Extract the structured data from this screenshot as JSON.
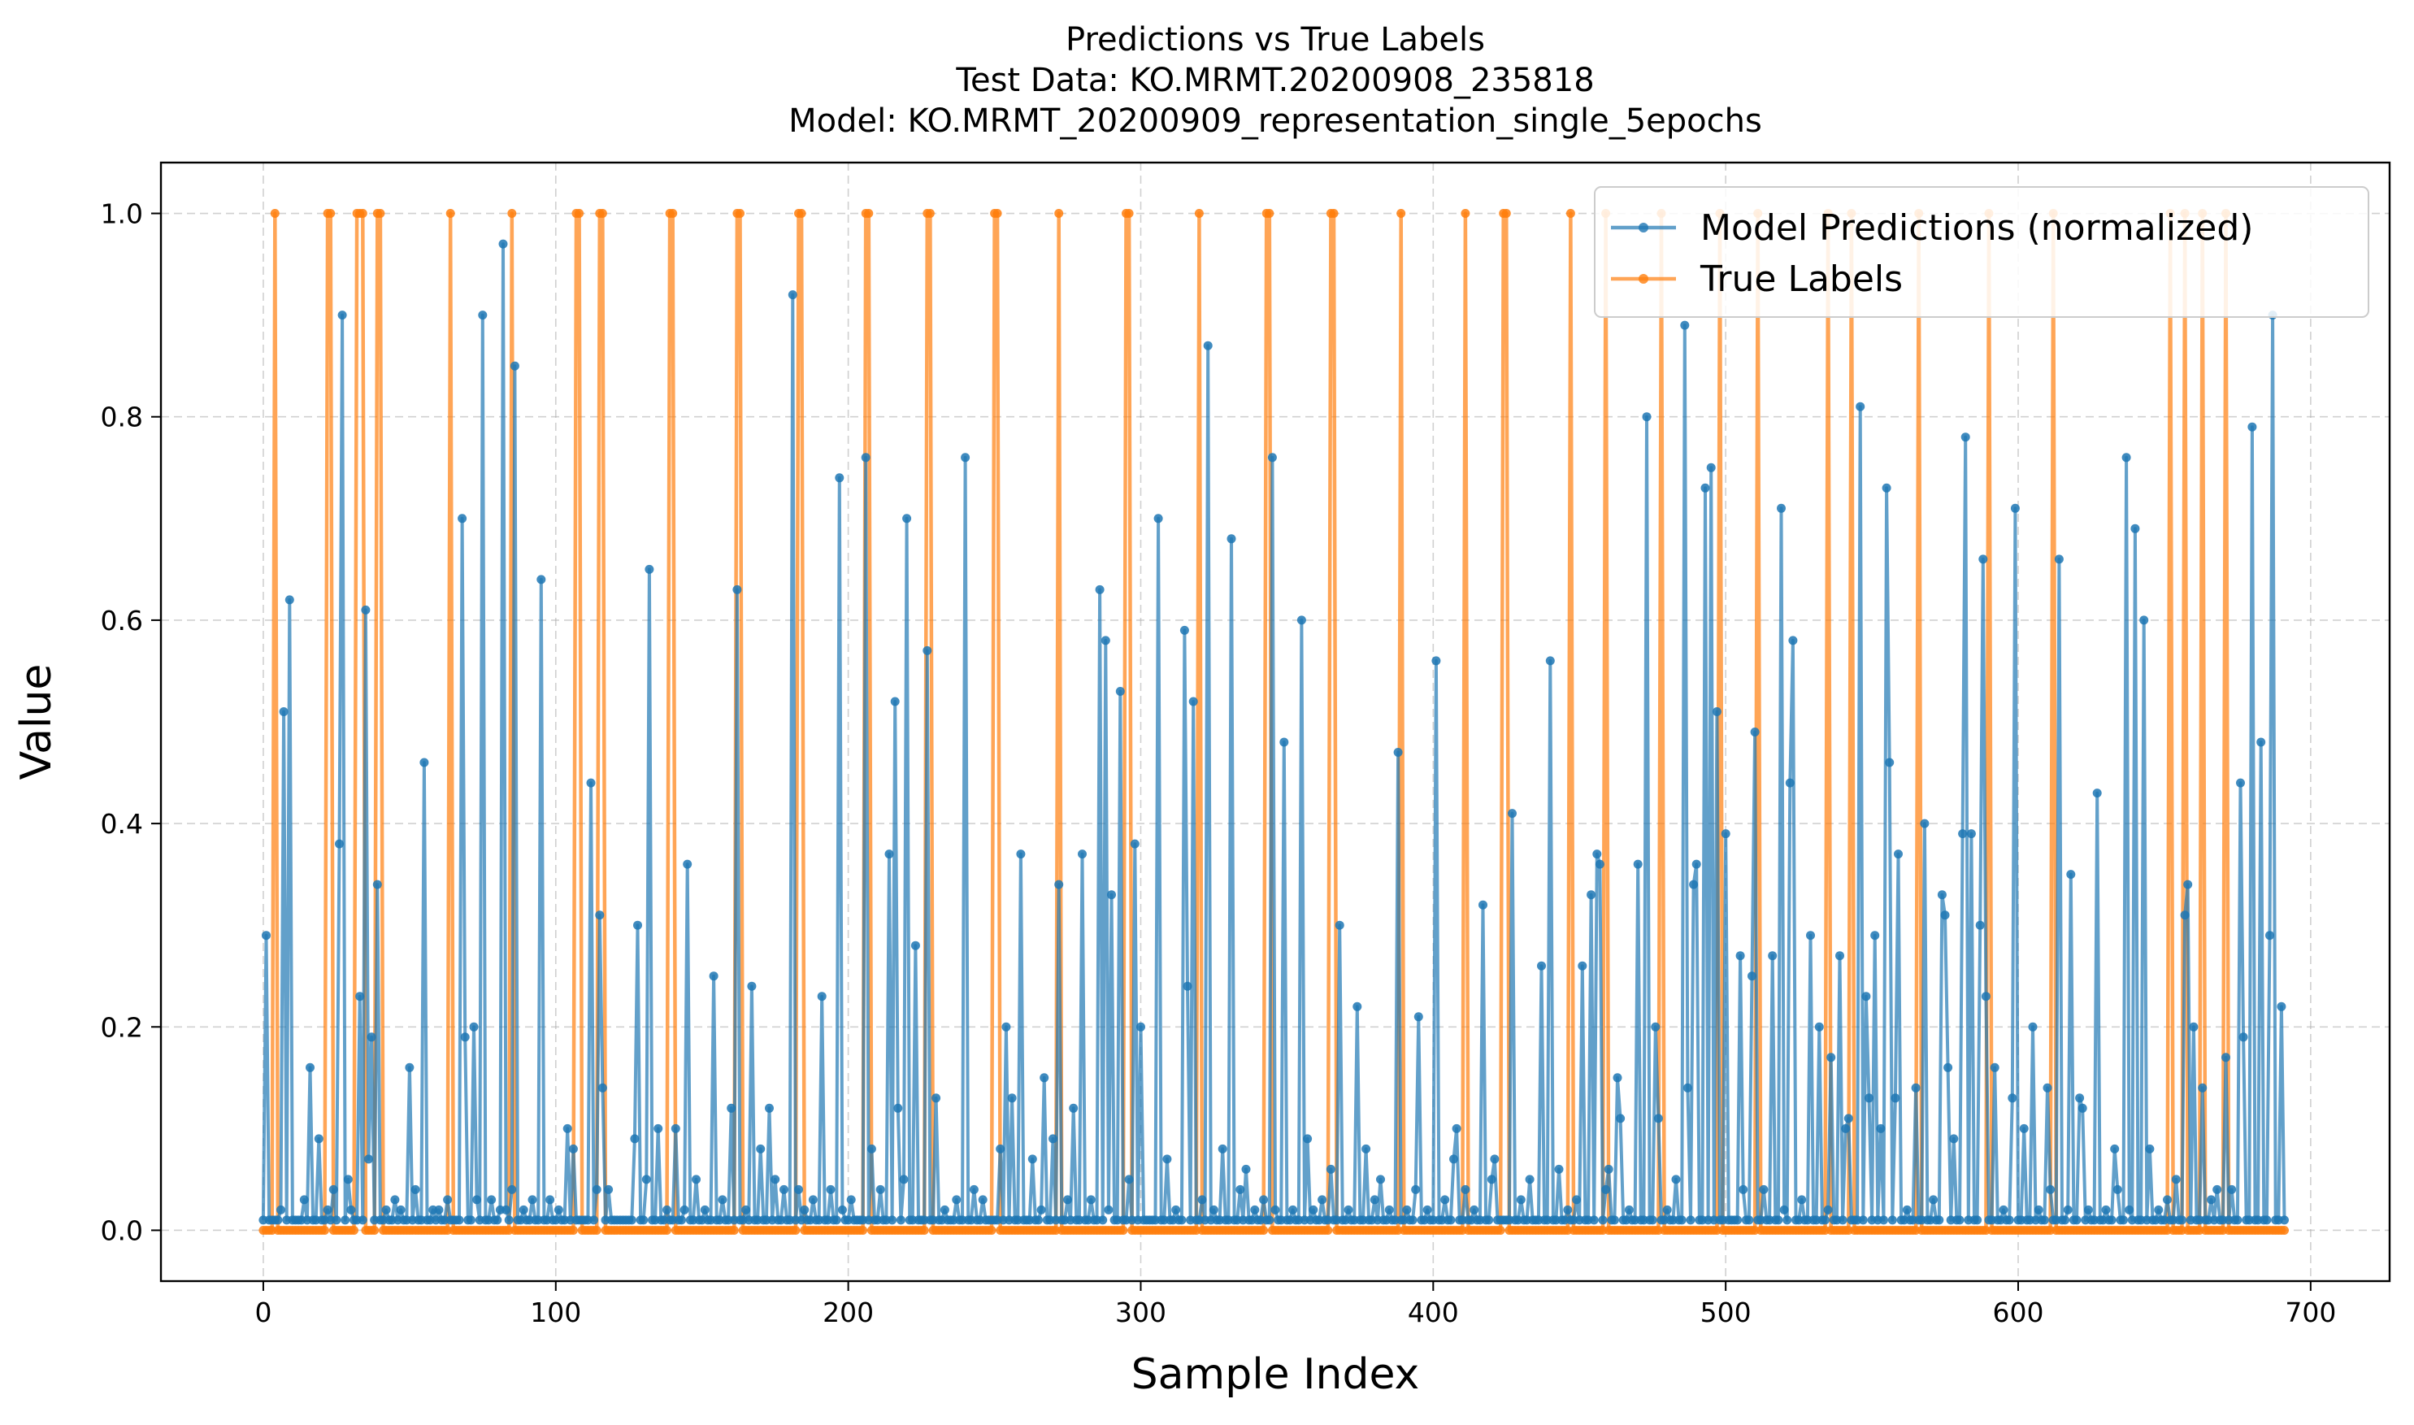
{
  "chart_data": {
    "type": "line",
    "title_lines": [
      "Predictions vs True Labels",
      "Test Data: KO.MRMT.20200908_235818",
      "Model: KO.MRMT_20200909_representation_single_5epochs"
    ],
    "xlabel": "Sample Index",
    "ylabel": "Value",
    "xlim": [
      -35,
      727
    ],
    "ylim": [
      -0.05,
      1.05
    ],
    "xticks": [
      0,
      100,
      200,
      300,
      400,
      500,
      600,
      700
    ],
    "yticks": [
      0.0,
      0.2,
      0.4,
      0.6,
      0.8,
      1.0
    ],
    "ytick_labels": [
      "0.0",
      "0.2",
      "0.4",
      "0.6",
      "0.8",
      "1.0"
    ],
    "grid": true,
    "legend_position": "top-right",
    "colors": {
      "predictions": "#1f77b4",
      "labels": "#ff7f0e"
    },
    "n_samples": 692,
    "series": [
      {
        "name": "Model Predictions (normalized)",
        "key": "predictions",
        "baseline": 0.01,
        "peaks": [
          [
            1,
            0.29
          ],
          [
            4,
            0.02
          ],
          [
            5,
            0.51
          ],
          [
            6,
            0.62
          ],
          [
            8,
            0.01
          ],
          [
            10,
            0.03
          ],
          [
            11,
            0.16
          ],
          [
            13,
            0.09
          ],
          [
            15,
            0.02
          ],
          [
            17,
            0.04
          ],
          [
            18,
            0.38
          ],
          [
            19,
            0.9
          ],
          [
            20,
            0.05
          ],
          [
            21,
            0.02
          ],
          [
            23,
            0.23
          ],
          [
            24,
            0.61
          ],
          [
            25,
            0.07
          ],
          [
            26,
            0.19
          ],
          [
            27,
            0.34
          ],
          [
            29,
            0.02
          ],
          [
            31,
            0.03
          ],
          [
            33,
            0.02
          ],
          [
            35,
            0.16
          ],
          [
            36,
            0.04
          ],
          [
            38,
            0.46
          ],
          [
            40,
            0.02
          ],
          [
            42,
            0.02
          ],
          [
            44,
            0.03
          ],
          [
            47,
            0.7
          ],
          [
            48,
            0.19
          ],
          [
            50,
            0.2
          ],
          [
            51,
            0.03
          ],
          [
            52,
            0.9
          ],
          [
            54,
            0.03
          ],
          [
            56,
            0.02
          ],
          [
            57,
            0.97
          ],
          [
            58,
            0.02
          ],
          [
            59,
            0.04
          ],
          [
            60,
            0.85
          ],
          [
            62,
            0.02
          ],
          [
            64,
            0.03
          ],
          [
            66,
            0.64
          ],
          [
            68,
            0.03
          ],
          [
            70,
            0.02
          ],
          [
            72,
            0.1
          ],
          [
            74,
            0.08
          ],
          [
            76,
            0.01
          ],
          [
            78,
            0.44
          ],
          [
            79,
            0.04
          ],
          [
            80,
            0.31
          ],
          [
            81,
            0.14
          ],
          [
            82,
            0.04
          ],
          [
            86,
            0.01
          ],
          [
            88,
            0.09
          ],
          [
            89,
            0.3
          ],
          [
            91,
            0.05
          ],
          [
            92,
            0.65
          ],
          [
            94,
            0.1
          ],
          [
            96,
            0.02
          ],
          [
            98,
            0.1
          ],
          [
            100,
            0.02
          ],
          [
            101,
            0.36
          ],
          [
            103,
            0.05
          ],
          [
            105,
            0.02
          ],
          [
            107,
            0.25
          ],
          [
            109,
            0.03
          ],
          [
            111,
            0.12
          ],
          [
            113,
            0.63
          ],
          [
            115,
            0.02
          ],
          [
            116,
            0.24
          ],
          [
            118,
            0.08
          ],
          [
            120,
            0.12
          ],
          [
            122,
            0.05
          ],
          [
            124,
            0.04
          ],
          [
            126,
            0.92
          ],
          [
            127,
            0.04
          ],
          [
            129,
            0.02
          ],
          [
            131,
            0.03
          ],
          [
            133,
            0.23
          ],
          [
            135,
            0.04
          ],
          [
            137,
            0.74
          ],
          [
            138,
            0.02
          ],
          [
            140,
            0.03
          ],
          [
            143,
            0.76
          ],
          [
            145,
            0.08
          ],
          [
            147,
            0.04
          ],
          [
            149,
            0.37
          ],
          [
            150,
            0.52
          ],
          [
            151,
            0.12
          ],
          [
            152,
            0.05
          ],
          [
            153,
            0.7
          ],
          [
            155,
            0.28
          ],
          [
            157,
            0.01
          ],
          [
            158,
            0.57
          ],
          [
            160,
            0.13
          ],
          [
            162,
            0.02
          ],
          [
            165,
            0.03
          ],
          [
            167,
            0.76
          ],
          [
            169,
            0.04
          ],
          [
            171,
            0.03
          ],
          [
            173,
            0.01
          ],
          [
            175,
            0.08
          ],
          [
            177,
            0.2
          ],
          [
            178,
            0.13
          ],
          [
            180,
            0.37
          ],
          [
            183,
            0.07
          ],
          [
            185,
            0.02
          ],
          [
            186,
            0.15
          ],
          [
            188,
            0.09
          ],
          [
            189,
            0.34
          ],
          [
            191,
            0.03
          ],
          [
            193,
            0.12
          ],
          [
            195,
            0.37
          ],
          [
            197,
            0.03
          ],
          [
            199,
            0.63
          ],
          [
            200,
            0.58
          ],
          [
            201,
            0.02
          ],
          [
            202,
            0.33
          ],
          [
            204,
            0.53
          ],
          [
            206,
            0.05
          ],
          [
            207,
            0.38
          ],
          [
            209,
            0.2
          ],
          [
            211,
            0.01
          ],
          [
            213,
            0.7
          ],
          [
            215,
            0.07
          ],
          [
            217,
            0.02
          ],
          [
            219,
            0.59
          ],
          [
            220,
            0.24
          ],
          [
            221,
            0.52
          ],
          [
            223,
            0.03
          ],
          [
            225,
            0.87
          ],
          [
            226,
            0.02
          ],
          [
            228,
            0.08
          ],
          [
            230,
            0.68
          ],
          [
            232,
            0.04
          ],
          [
            234,
            0.06
          ],
          [
            236,
            0.02
          ],
          [
            238,
            0.03
          ],
          [
            240,
            0.76
          ],
          [
            241,
            0.02
          ],
          [
            243,
            0.48
          ],
          [
            245,
            0.02
          ],
          [
            247,
            0.6
          ],
          [
            248,
            0.09
          ],
          [
            250,
            0.02
          ],
          [
            252,
            0.03
          ],
          [
            254,
            0.06
          ],
          [
            256,
            0.3
          ],
          [
            258,
            0.02
          ],
          [
            260,
            0.22
          ],
          [
            262,
            0.08
          ],
          [
            264,
            0.03
          ],
          [
            266,
            0.05
          ],
          [
            268,
            0.02
          ],
          [
            270,
            0.47
          ],
          [
            272,
            0.02
          ],
          [
            274,
            0.04
          ],
          [
            275,
            0.21
          ],
          [
            277,
            0.02
          ],
          [
            279,
            0.56
          ],
          [
            281,
            0.03
          ],
          [
            283,
            0.07
          ],
          [
            284,
            0.1
          ],
          [
            286,
            0.04
          ],
          [
            288,
            0.02
          ],
          [
            290,
            0.32
          ],
          [
            292,
            0.05
          ],
          [
            293,
            0.07
          ],
          [
            295,
            0.01
          ],
          [
            297,
            0.41
          ],
          [
            299,
            0.03
          ],
          [
            301,
            0.05
          ],
          [
            304,
            0.26
          ],
          [
            305,
            0.01
          ],
          [
            306,
            0.56
          ],
          [
            308,
            0.06
          ],
          [
            310,
            0.02
          ],
          [
            312,
            0.03
          ],
          [
            314,
            0.26
          ],
          [
            316,
            0.33
          ],
          [
            317,
            0.37
          ],
          [
            318,
            0.36
          ],
          [
            319,
            0.04
          ],
          [
            320,
            0.06
          ],
          [
            322,
            0.15
          ],
          [
            323,
            0.11
          ],
          [
            325,
            0.02
          ],
          [
            327,
            0.36
          ],
          [
            329,
            0.8
          ],
          [
            331,
            0.2
          ],
          [
            332,
            0.11
          ],
          [
            334,
            0.02
          ],
          [
            336,
            0.05
          ],
          [
            338,
            0.89
          ],
          [
            339,
            0.14
          ],
          [
            340,
            0.34
          ],
          [
            341,
            0.36
          ],
          [
            343,
            0.73
          ],
          [
            344,
            0.75
          ],
          [
            346,
            0.51
          ],
          [
            348,
            0.39
          ],
          [
            351,
            0.27
          ],
          [
            352,
            0.04
          ],
          [
            354,
            0.25
          ],
          [
            355,
            0.49
          ],
          [
            357,
            0.04
          ],
          [
            359,
            0.27
          ],
          [
            361,
            0.71
          ],
          [
            362,
            0.02
          ],
          [
            363,
            0.44
          ],
          [
            364,
            0.58
          ],
          [
            366,
            0.03
          ],
          [
            368,
            0.29
          ],
          [
            370,
            0.2
          ],
          [
            372,
            0.02
          ],
          [
            373,
            0.17
          ],
          [
            375,
            0.27
          ],
          [
            376,
            0.1
          ],
          [
            377,
            0.11
          ],
          [
            379,
            0.01
          ],
          [
            380,
            0.81
          ],
          [
            381,
            0.23
          ],
          [
            382,
            0.13
          ],
          [
            383,
            0.29
          ],
          [
            385,
            0.1
          ],
          [
            386,
            0.73
          ],
          [
            387,
            0.46
          ],
          [
            388,
            0.13
          ],
          [
            389,
            0.37
          ],
          [
            391,
            0.02
          ],
          [
            393,
            0.14
          ],
          [
            395,
            0.4
          ],
          [
            397,
            0.03
          ],
          [
            399,
            0.33
          ],
          [
            400,
            0.31
          ],
          [
            401,
            0.16
          ],
          [
            402,
            0.09
          ],
          [
            404,
            0.39
          ],
          [
            405,
            0.78
          ],
          [
            406,
            0.39
          ],
          [
            408,
            0.3
          ],
          [
            409,
            0.66
          ],
          [
            410,
            0.23
          ],
          [
            412,
            0.16
          ],
          [
            414,
            0.02
          ],
          [
            416,
            0.13
          ],
          [
            417,
            0.71
          ],
          [
            419,
            0.1
          ],
          [
            421,
            0.2
          ],
          [
            422,
            0.02
          ],
          [
            424,
            0.14
          ],
          [
            425,
            0.04
          ],
          [
            427,
            0.66
          ],
          [
            429,
            0.02
          ],
          [
            430,
            0.35
          ],
          [
            432,
            0.13
          ],
          [
            433,
            0.12
          ],
          [
            434,
            0.02
          ],
          [
            436,
            0.43
          ],
          [
            438,
            0.02
          ],
          [
            440,
            0.08
          ],
          [
            441,
            0.04
          ],
          [
            443,
            0.76
          ],
          [
            444,
            0.02
          ],
          [
            445,
            0.69
          ],
          [
            447,
            0.6
          ],
          [
            449,
            0.08
          ],
          [
            451,
            0.02
          ],
          [
            453,
            0.03
          ],
          [
            455,
            0.05
          ],
          [
            457,
            0.31
          ],
          [
            458,
            0.34
          ],
          [
            459,
            0.2
          ],
          [
            461,
            0.14
          ],
          [
            463,
            0.03
          ],
          [
            465,
            0.04
          ],
          [
            467,
            0.17
          ],
          [
            468,
            0.04
          ],
          [
            470,
            0.44
          ],
          [
            471,
            0.19
          ],
          [
            473,
            0.79
          ],
          [
            475,
            0.48
          ],
          [
            477,
            0.29
          ],
          [
            478,
            0.9
          ],
          [
            480,
            0.22
          ],
          [
            481,
            0.01
          ]
        ],
        "peak_index_scale": 1.4375
      },
      {
        "name": "True Labels",
        "key": "labels",
        "ones": [
          4,
          22,
          23,
          32,
          33,
          34,
          39,
          40,
          64,
          85,
          107,
          108,
          115,
          116,
          139,
          140,
          162,
          163,
          183,
          184,
          206,
          207,
          227,
          228,
          250,
          251,
          272,
          295,
          296,
          320,
          343,
          344,
          365,
          366,
          389,
          411,
          424,
          425,
          447,
          459,
          478,
          498,
          511,
          535,
          543,
          566,
          590,
          612,
          652,
          657,
          663,
          671
        ]
      }
    ]
  },
  "legend": {
    "predictions_label": "Model Predictions (normalized)",
    "labels_label": "True Labels"
  }
}
